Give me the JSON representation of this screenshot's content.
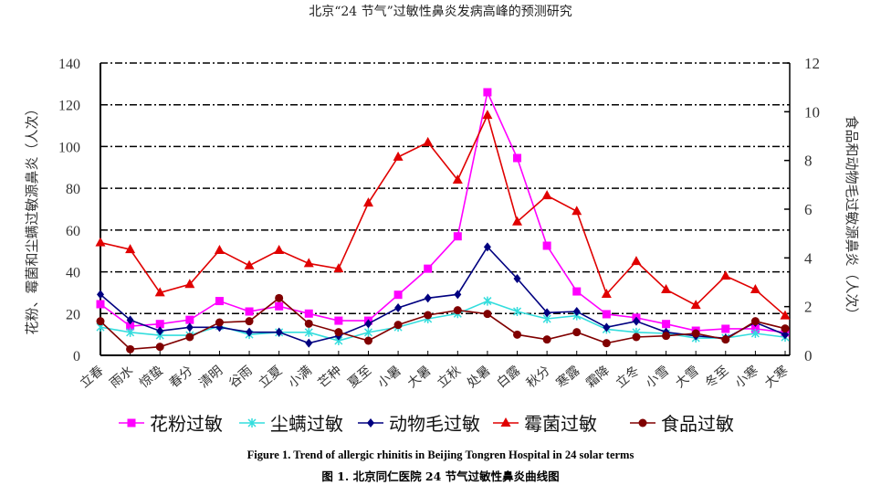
{
  "header": {
    "title": "北京“24 节气”过敏性鼻炎发病高峰的预测研究"
  },
  "caption": {
    "en": "Figure 1. Trend of allergic rhinitis in Beijing Tongren Hospital in 24 solar terms",
    "zh": "图 1. 北京同仁医院 24 节气过敏性鼻炎曲线图"
  },
  "chart_data": {
    "type": "line",
    "categories": [
      "立春",
      "雨水",
      "惊蛰",
      "春分",
      "清明",
      "谷雨",
      "立夏",
      "小满",
      "芒种",
      "夏至",
      "小暑",
      "大暑",
      "立秋",
      "处暑",
      "白露",
      "秋分",
      "寒露",
      "霜降",
      "立冬",
      "小雪",
      "大雪",
      "冬至",
      "小寒",
      "大寒"
    ],
    "ylabel_left": "花粉、霉菌和尘螨过敏源鼻炎（人次）",
    "ylabel_right": "食品和动物毛过敏源鼻炎（人次）",
    "ylim_left": [
      0,
      140
    ],
    "yticks_left": [
      0,
      20,
      40,
      60,
      80,
      100,
      120,
      140
    ],
    "ylim_right": [
      0,
      12
    ],
    "yticks_right": [
      0,
      2,
      4,
      6,
      8,
      10,
      12
    ],
    "grid": "dash-dot horizontal",
    "legend": "bottom",
    "series": [
      {
        "name": "花粉过敏",
        "axis": "left",
        "color": "#ff00ff",
        "marker": "square",
        "values": [
          24.5,
          14,
          15,
          17,
          26,
          21,
          23.5,
          20,
          16.6,
          16.6,
          29,
          41.5,
          57,
          126,
          94.5,
          52.5,
          30.6,
          19.7,
          18,
          15,
          11.8,
          12.7,
          12.7,
          11
        ]
      },
      {
        "name": "尘螨过敏",
        "axis": "left",
        "color": "#33dddd",
        "marker": "x",
        "values": [
          13.5,
          11,
          9.6,
          9.6,
          14,
          10,
          11,
          11,
          7,
          11,
          13.5,
          17.5,
          20,
          26,
          21,
          17.5,
          19,
          12.5,
          11,
          10.5,
          8.3,
          8.3,
          10.5,
          8.7
        ]
      },
      {
        "name": "动物毛过敏",
        "axis": "right",
        "color": "#000080",
        "marker": "diamond",
        "values": [
          2.5,
          1.45,
          1.0,
          1.15,
          1.15,
          0.95,
          0.95,
          0.5,
          0.8,
          1.3,
          1.95,
          2.35,
          2.5,
          4.45,
          3.15,
          1.75,
          1.8,
          1.15,
          1.4,
          0.95,
          0.8,
          0.7,
          1.35,
          0.85
        ]
      },
      {
        "name": "霉菌过敏",
        "axis": "left",
        "color": "#e00000",
        "marker": "triangle",
        "values": [
          54,
          50.7,
          30,
          34,
          50.3,
          43,
          50.3,
          44,
          41.5,
          73,
          95,
          102,
          84,
          115,
          64,
          76.5,
          69,
          29.3,
          45,
          31.5,
          24,
          38,
          31.5,
          19
        ]
      },
      {
        "name": "食品过敏",
        "axis": "right",
        "color": "#800000",
        "marker": "circle",
        "values": [
          1.4,
          0.25,
          0.35,
          0.75,
          1.35,
          1.4,
          2.35,
          1.3,
          0.95,
          0.6,
          1.25,
          1.65,
          1.85,
          1.7,
          0.85,
          0.65,
          0.95,
          0.5,
          0.75,
          0.8,
          0.9,
          0.65,
          1.4,
          1.1
        ]
      }
    ]
  }
}
